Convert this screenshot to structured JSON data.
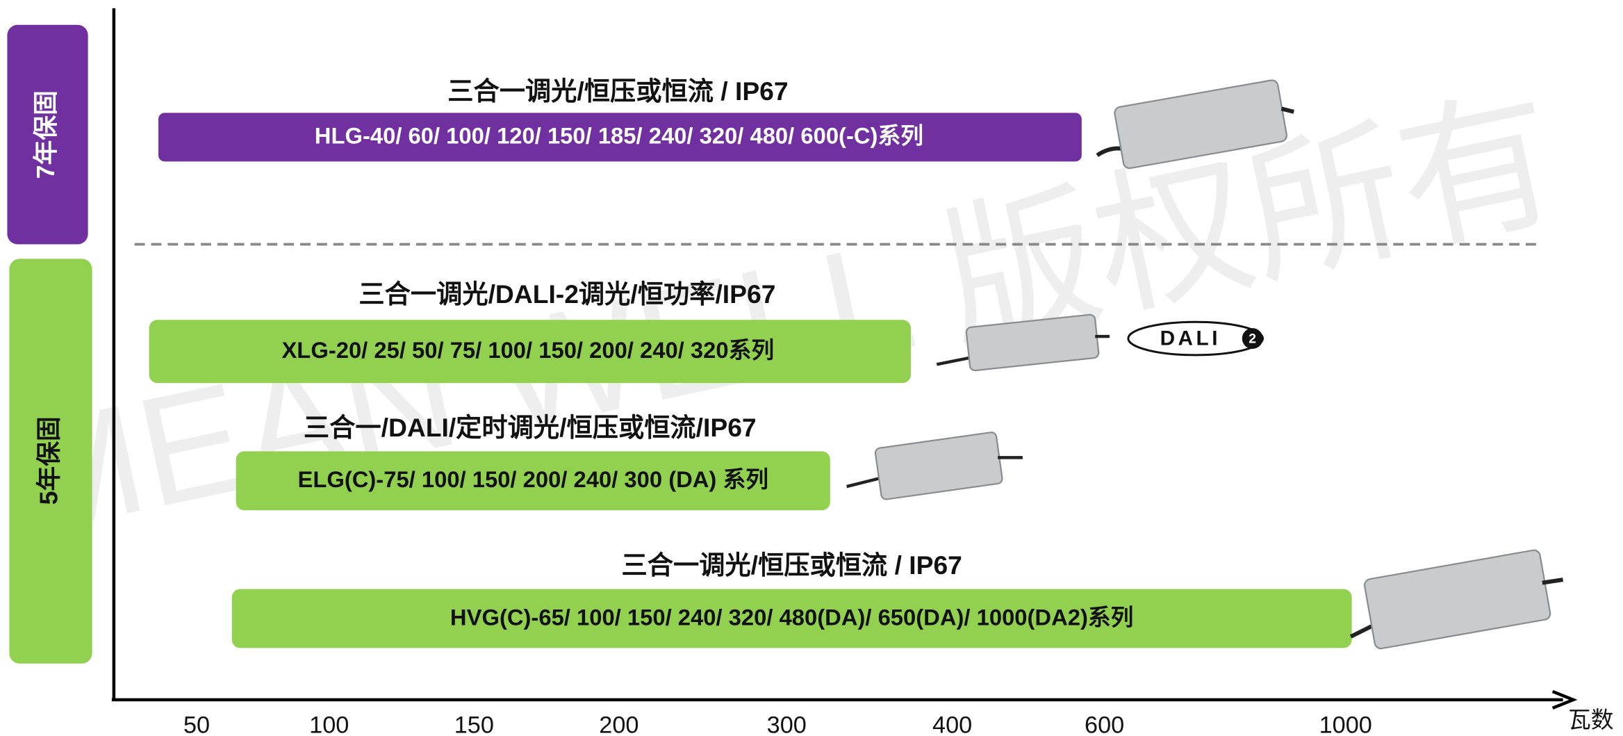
{
  "watermark": "MEAN WELL 版权所有",
  "warranty": [
    {
      "label": "7年保固"
    },
    {
      "label": "5年保固"
    }
  ],
  "series": [
    {
      "title": "三合一调光/恒压或恒流 / IP67",
      "label": "HLG-40/ 60/ 100/ 120/ 150/ 185/ 240/ 320/ 480/ 600(-C)系列"
    },
    {
      "title": "三合一调光/DALI-2调光/恒功率/IP67",
      "label": "XLG-20/ 25/ 50/ 75/ 100/ 150/ 200/ 240/ 320系列"
    },
    {
      "title": "三合一/DALI/定时调光/恒压或恒流/IP67",
      "label": "ELG(C)-75/ 100/ 150/ 200/ 240/ 300 (DA) 系列"
    },
    {
      "title": "三合一调光/恒压或恒流 / IP67",
      "label": "HVG(C)-65/ 100/ 150/ 240/ 320/ 480(DA)/ 650(DA)/ 1000(DA2)系列"
    }
  ],
  "dali_logo": {
    "text": "DALI",
    "superscript": "2"
  },
  "axis": {
    "ticks": [
      "50",
      "100",
      "150",
      "200",
      "300",
      "400",
      "600",
      "1000"
    ],
    "unit": "瓦数"
  }
}
